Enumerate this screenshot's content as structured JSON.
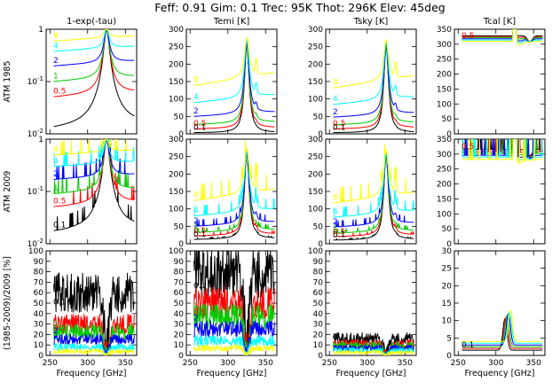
{
  "title": "Feff: 0.91 Gim: 0.1 Trec: 95K Thot: 296K Elev: 45deg",
  "xlabel": "Frequency [GHz]",
  "column_titles": [
    "1-exp(-tau)",
    "Temi [K]",
    "Tsky [K]",
    "Tcal [K]"
  ],
  "row_labels": [
    "ATM 1985",
    "ATM 2009",
    "(1985-2009)/2009 [%]"
  ],
  "legend_labels": [
    "0.1",
    "0.5",
    "1",
    "2",
    "4",
    "8"
  ],
  "colors": {
    "0.1": "#000000",
    "0.5": "#ff0000",
    "1": "#00cc00",
    "2": "#0000ff",
    "4": "#00ffff",
    "8": "#ffff00"
  },
  "chart_data": {
    "type": "line",
    "description_note": "Grid of 12 line panels; curves are atmospheric model spectra for precipitable water vapor (mm) values 0.1, 0.5, 1, 2, 4, 8.",
    "x": {
      "range": [
        245,
        365
      ],
      "ticks": [
        250,
        300,
        350
      ]
    },
    "series_names": [
      "0.1",
      "0.5",
      "1",
      "2",
      "4",
      "8"
    ],
    "line_center_ghz": 325.15,
    "rows": [
      {
        "label": "ATM 1985",
        "panels": [
          {
            "column": "1-exp(-tau)",
            "yscale": "log",
            "ylim": [
              0.01,
              1
            ],
            "yticklabels": [
              "10^-2",
              "10^-1",
              "1"
            ],
            "baseline_at_260": {
              "0.1": 0.012,
              "0.5": 0.05,
              "1": 0.1,
              "2": 0.2,
              "4": 0.38,
              "8": 0.6
            },
            "labels_shown": [
              "0.5",
              "1",
              "2",
              "4",
              "8"
            ]
          },
          {
            "column": "Temi [K]",
            "yscale": "linear",
            "ylim": [
              0,
              300
            ],
            "yticklabels": [
              "0",
              "50",
              "100",
              "150",
              "200",
              "250",
              "300"
            ],
            "baseline_at_260": {
              "0.1": 3,
              "0.5": 14,
              "1": 27,
              "2": 50,
              "4": 90,
              "8": 140
            },
            "peak_at_line": 255,
            "labels_shown": [
              "0.1",
              "0.5",
              "2",
              "4",
              "8"
            ]
          },
          {
            "column": "Tsky [K]",
            "yscale": "linear",
            "ylim": [
              0,
              300
            ],
            "yticklabels": [
              "0",
              "50",
              "100",
              "150",
              "200",
              "250",
              "300"
            ],
            "baseline_at_260": {
              "0.1": 3,
              "0.5": 14,
              "1": 26,
              "2": 48,
              "4": 85,
              "8": 133
            },
            "peak_at_line": 250,
            "labels_shown": [
              "0.1",
              "0.5",
              "2",
              "4",
              "8"
            ]
          },
          {
            "column": "Tcal [K]",
            "yscale": "linear",
            "ylim": [
              0,
              350
            ],
            "yticklabels": [
              "0",
              "50",
              "100",
              "150",
              "200",
              "250",
              "300",
              "350"
            ],
            "baseline_at_260": {
              "0.1": 328,
              "0.5": 325,
              "1": 322,
              "2": 318,
              "4": 314,
              "8": 310
            },
            "labels_shown": [
              "0.5"
            ]
          }
        ]
      },
      {
        "label": "ATM 2009",
        "panels": [
          {
            "column": "1-exp(-tau)",
            "yscale": "log",
            "ylim": [
              0.01,
              1
            ],
            "yticklabels": [
              "10^-2",
              "10^-1",
              "1"
            ],
            "baseline_at_260": {
              "0.1": 0.016,
              "0.5": 0.05,
              "1": 0.09,
              "2": 0.17,
              "4": 0.3,
              "8": 0.5
            },
            "labels_shown": [
              "0.1",
              "0.5",
              "1",
              "2",
              "4",
              "8"
            ]
          },
          {
            "column": "Temi [K]",
            "yscale": "linear",
            "ylim": [
              0,
              300
            ],
            "yticklabels": [
              "0",
              "50",
              "100",
              "150",
              "200",
              "250",
              "300"
            ],
            "baseline_at_260": {
              "0.1": 12,
              "0.5": 22,
              "1": 32,
              "2": 50,
              "4": 80,
              "8": 125
            },
            "peak_at_line": 255,
            "labels_shown": [
              "0.1",
              "0.5",
              "1",
              "2",
              "4",
              "8"
            ]
          },
          {
            "column": "Tsky [K]",
            "yscale": "linear",
            "ylim": [
              0,
              300
            ],
            "yticklabels": [
              "0",
              "50",
              "100",
              "150",
              "200",
              "250",
              "300"
            ],
            "baseline_at_260": {
              "0.1": 10,
              "0.5": 20,
              "1": 30,
              "2": 48,
              "4": 76,
              "8": 118
            },
            "peak_at_line": 250,
            "labels_shown": [
              "0.1",
              "0.5",
              "1",
              "2",
              "4",
              "8"
            ]
          },
          {
            "column": "Tcal [K]",
            "yscale": "linear",
            "ylim": [
              0,
              350
            ],
            "yticklabels": [
              "0",
              "50",
              "100",
              "150",
              "200",
              "250",
              "300",
              "350"
            ],
            "baseline_at_260": {
              "0.1": 315,
              "0.5": 308,
              "1": 302,
              "2": 296,
              "4": 290,
              "8": 282
            },
            "labels_shown": [
              "0.5"
            ]
          }
        ]
      },
      {
        "label": "(1985-2009)/2009 [%]",
        "panels": [
          {
            "column": "1-exp(-tau)",
            "yscale": "linear",
            "ylim": [
              0,
              100
            ],
            "yticklabels": [
              "0",
              "10",
              "20",
              "30",
              "40",
              "50",
              "60",
              "70",
              "80",
              "90",
              "100"
            ],
            "baseline_at_260": {
              "0.1": 60,
              "0.5": 30,
              "1": 22,
              "2": 15,
              "4": 8,
              "8": 4
            },
            "labels_shown": [
              "0.1",
              "0.5",
              "1",
              "2"
            ]
          },
          {
            "column": "Temi [K]",
            "yscale": "linear",
            "ylim": [
              0,
              100
            ],
            "yticklabels": [
              "0",
              "10",
              "20",
              "30",
              "40",
              "50",
              "60",
              "70",
              "80",
              "90",
              "100"
            ],
            "baseline_at_260": {
              "0.1": 80,
              "0.5": 50,
              "1": 37,
              "2": 25,
              "4": 14,
              "8": 7
            },
            "labels_shown": [
              "0.1",
              "0.5",
              "1",
              "2"
            ]
          },
          {
            "column": "Tsky [K]",
            "yscale": "linear",
            "ylim": [
              0,
              100
            ],
            "yticklabels": [
              "0",
              "10",
              "20",
              "30",
              "40",
              "50",
              "60",
              "70",
              "80",
              "90",
              "100"
            ],
            "baseline_at_260": {
              "0.1": 16,
              "0.5": 11,
              "1": 9,
              "2": 7,
              "4": 5,
              "8": 3
            },
            "labels_shown": [
              "0.1"
            ]
          },
          {
            "column": "Tcal [K]",
            "yscale": "linear",
            "ylim": [
              0,
              30
            ],
            "yticklabels": [
              "0",
              "5",
              "10",
              "15",
              "20",
              "25",
              "30"
            ],
            "baseline_at_260": {
              "0.1": 1.5,
              "0.5": 2,
              "1": 2.5,
              "2": 3,
              "4": 3.5,
              "8": 4
            },
            "labels_shown": [
              "0.1"
            ]
          }
        ]
      }
    ]
  }
}
